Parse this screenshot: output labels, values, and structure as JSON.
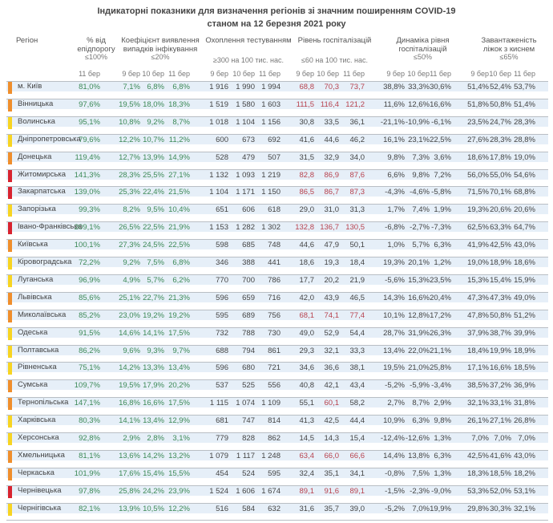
{
  "title_line1": "Індикаторні показники для визначення регіонів зі значним поширенням COVID-19",
  "title_line2": "станом на 12 березня 2021 року",
  "headers": {
    "region": "Регіон",
    "epid": "% від епідпорогу",
    "epid_thr": "≤100%",
    "detect": "Коефіцієнт виявлення випадків інфікування",
    "detect_thr": "≤20%",
    "testing": "Охоплення тестуванням",
    "testing_thr": "≥300 на 100 тис. нас.",
    "hosp": "Рівень госпіталізацій",
    "hosp_thr": "≤60 на 100 тис. нас.",
    "dyn": "Динаміка рівня госпіталізацій",
    "dyn_thr": "≤50%",
    "beds": "Завантаженість ліжок з киснем",
    "beds_thr": "≤65%"
  },
  "dates": [
    "9 бер",
    "10 бер",
    "11 бер"
  ],
  "level_colors": {
    "orange": "#ef8e2c",
    "yellow": "#f7d422",
    "red": "#d8232f"
  },
  "rows": [
    {
      "name": "м. Київ",
      "level": "orange",
      "v": [
        "81,0%",
        "7,1%",
        "6,8%",
        "6,8%",
        "1 916",
        "1 990",
        "1 994",
        "68,8",
        "70,3",
        "73,7",
        "38,8%",
        "33,3%",
        "30,6%",
        "51,4%",
        "52,4%",
        "53,7%"
      ]
    },
    {
      "name": "Вінницька",
      "level": "orange",
      "v": [
        "97,6%",
        "19,5%",
        "18,0%",
        "18,3%",
        "1 519",
        "1 580",
        "1 603",
        "111,5",
        "116,4",
        "121,2",
        "11,6%",
        "12,6%",
        "16,6%",
        "51,8%",
        "50,8%",
        "51,4%"
      ]
    },
    {
      "name": "Волинська",
      "level": "yellow",
      "v": [
        "95,1%",
        "10,8%",
        "9,2%",
        "8,7%",
        "1 018",
        "1 104",
        "1 156",
        "30,8",
        "33,5",
        "36,1",
        "-21,1%",
        "-10,9%",
        "-6,1%",
        "23,5%",
        "24,7%",
        "28,3%"
      ]
    },
    {
      "name": "Дніпропетровська",
      "level": "yellow",
      "v": [
        "79,6%",
        "12,2%",
        "10,7%",
        "11,2%",
        "600",
        "673",
        "692",
        "41,6",
        "44,6",
        "46,2",
        "16,1%",
        "23,1%",
        "22,5%",
        "27,6%",
        "28,3%",
        "28,8%"
      ]
    },
    {
      "name": "Донецька",
      "level": "orange",
      "v": [
        "119,4%",
        "12,7%",
        "13,9%",
        "14,9%",
        "528",
        "479",
        "507",
        "31,5",
        "32,9",
        "34,0",
        "9,8%",
        "7,3%",
        "3,6%",
        "18,6%",
        "17,8%",
        "19,0%"
      ]
    },
    {
      "name": "Житомирська",
      "level": "red",
      "v": [
        "141,3%",
        "28,3%",
        "25,5%",
        "27,1%",
        "1 132",
        "1 093",
        "1 219",
        "82,8",
        "86,9",
        "87,6",
        "6,6%",
        "9,8%",
        "7,2%",
        "56,0%",
        "55,0%",
        "54,6%"
      ]
    },
    {
      "name": "Закарпатська",
      "level": "red",
      "v": [
        "139,0%",
        "25,3%",
        "22,4%",
        "21,5%",
        "1 104",
        "1 171",
        "1 150",
        "86,5",
        "86,7",
        "87,3",
        "-4,3%",
        "-4,6%",
        "-5,8%",
        "71,5%",
        "70,1%",
        "68,8%"
      ]
    },
    {
      "name": "Запорізька",
      "level": "yellow",
      "v": [
        "99,3%",
        "8,2%",
        "9,5%",
        "10,4%",
        "651",
        "606",
        "618",
        "29,0",
        "31,0",
        "31,3",
        "1,7%",
        "7,4%",
        "1,9%",
        "19,3%",
        "20,6%",
        "20,6%"
      ]
    },
    {
      "name": "Івано-Франківська",
      "level": "red",
      "v": [
        "209,1%",
        "26,5%",
        "22,5%",
        "21,9%",
        "1 153",
        "1 282",
        "1 302",
        "132,8",
        "136,7",
        "130,5",
        "-6,8%",
        "-2,7%",
        "-7,3%",
        "62,5%",
        "63,3%",
        "64,7%"
      ]
    },
    {
      "name": "Київська",
      "level": "orange",
      "v": [
        "100,1%",
        "27,3%",
        "24,5%",
        "22,5%",
        "598",
        "685",
        "748",
        "44,6",
        "47,9",
        "50,1",
        "1,0%",
        "5,7%",
        "6,3%",
        "41,9%",
        "42,5%",
        "43,0%"
      ]
    },
    {
      "name": "Кіровоградська",
      "level": "yellow",
      "v": [
        "72,2%",
        "9,2%",
        "7,5%",
        "6,8%",
        "346",
        "388",
        "441",
        "18,6",
        "19,3",
        "18,4",
        "19,3%",
        "20,1%",
        "1,2%",
        "19,0%",
        "18,9%",
        "18,6%"
      ]
    },
    {
      "name": "Луганська",
      "level": "yellow",
      "v": [
        "96,9%",
        "4,9%",
        "5,7%",
        "6,2%",
        "770",
        "700",
        "786",
        "17,7",
        "20,2",
        "21,9",
        "-5,6%",
        "15,3%",
        "23,5%",
        "15,3%",
        "15,4%",
        "15,9%"
      ]
    },
    {
      "name": "Львівська",
      "level": "orange",
      "v": [
        "85,6%",
        "25,1%",
        "22,7%",
        "21,3%",
        "596",
        "659",
        "716",
        "42,0",
        "43,9",
        "46,5",
        "14,3%",
        "16,6%",
        "20,4%",
        "47,3%",
        "47,3%",
        "49,0%"
      ]
    },
    {
      "name": "Миколаївська",
      "level": "orange",
      "v": [
        "85,2%",
        "23,0%",
        "19,2%",
        "19,2%",
        "595",
        "689",
        "756",
        "68,1",
        "74,1",
        "77,4",
        "10,1%",
        "12,8%",
        "17,2%",
        "47,8%",
        "50,8%",
        "51,2%"
      ]
    },
    {
      "name": "Одеська",
      "level": "yellow",
      "v": [
        "91,5%",
        "14,6%",
        "14,1%",
        "17,5%",
        "732",
        "788",
        "730",
        "49,0",
        "52,9",
        "54,4",
        "28,7%",
        "31,9%",
        "26,3%",
        "37,9%",
        "38,7%",
        "39,9%"
      ]
    },
    {
      "name": "Полтавська",
      "level": "yellow",
      "v": [
        "86,2%",
        "9,6%",
        "9,3%",
        "9,7%",
        "688",
        "794",
        "861",
        "29,3",
        "32,1",
        "33,3",
        "13,4%",
        "22,0%",
        "21,1%",
        "18,4%",
        "19,9%",
        "18,9%"
      ]
    },
    {
      "name": "Рівненська",
      "level": "yellow",
      "v": [
        "75,1%",
        "14,2%",
        "13,3%",
        "13,4%",
        "596",
        "680",
        "721",
        "34,6",
        "36,6",
        "38,1",
        "19,5%",
        "21,0%",
        "25,8%",
        "17,1%",
        "16,6%",
        "18,5%"
      ]
    },
    {
      "name": "Сумська",
      "level": "orange",
      "v": [
        "109,7%",
        "19,5%",
        "17,9%",
        "20,2%",
        "537",
        "525",
        "556",
        "40,8",
        "42,1",
        "43,4",
        "-5,2%",
        "-5,9%",
        "-3,4%",
        "38,5%",
        "37,2%",
        "36,9%"
      ]
    },
    {
      "name": "Тернопільська",
      "level": "orange",
      "v": [
        "147,1%",
        "16,8%",
        "16,6%",
        "17,5%",
        "1 115",
        "1 074",
        "1 109",
        "55,1",
        "60,1",
        "58,2",
        "2,7%",
        "8,7%",
        "2,9%",
        "32,1%",
        "33,1%",
        "31,8%"
      ]
    },
    {
      "name": "Харківська",
      "level": "yellow",
      "v": [
        "80,3%",
        "14,1%",
        "13,4%",
        "12,9%",
        "681",
        "747",
        "814",
        "41,3",
        "42,5",
        "44,4",
        "10,9%",
        "6,3%",
        "9,8%",
        "26,1%",
        "27,1%",
        "26,8%"
      ]
    },
    {
      "name": "Херсонська",
      "level": "yellow",
      "v": [
        "92,8%",
        "2,9%",
        "2,8%",
        "3,1%",
        "779",
        "828",
        "862",
        "14,5",
        "14,3",
        "15,4",
        "-12,4%",
        "-12,6%",
        "1,3%",
        "7,0%",
        "7,0%",
        "7,0%"
      ]
    },
    {
      "name": "Хмельницька",
      "level": "orange",
      "v": [
        "81,1%",
        "13,6%",
        "14,2%",
        "13,2%",
        "1 079",
        "1 117",
        "1 248",
        "63,4",
        "66,0",
        "66,6",
        "14,4%",
        "13,8%",
        "6,3%",
        "42,5%",
        "41,6%",
        "43,0%"
      ]
    },
    {
      "name": "Черкаська",
      "level": "orange",
      "v": [
        "101,9%",
        "17,6%",
        "15,4%",
        "15,5%",
        "454",
        "524",
        "595",
        "32,4",
        "35,1",
        "34,1",
        "-0,8%",
        "7,5%",
        "1,3%",
        "18,3%",
        "18,5%",
        "18,2%"
      ]
    },
    {
      "name": "Чернівецька",
      "level": "red",
      "v": [
        "97,8%",
        "25,8%",
        "24,2%",
        "23,9%",
        "1 524",
        "1 606",
        "1 674",
        "89,1",
        "91,6",
        "89,1",
        "-1,5%",
        "-2,3%",
        "-9,0%",
        "53,3%",
        "52,0%",
        "53,1%"
      ]
    },
    {
      "name": "Чернігівська",
      "level": "yellow",
      "v": [
        "82,1%",
        "13,9%",
        "10,5%",
        "12,2%",
        "516",
        "584",
        "632",
        "31,6",
        "35,7",
        "39,0",
        "-5,2%",
        "7,0%",
        "19,9%",
        "29,8%",
        "30,3%",
        "32,1%"
      ]
    }
  ]
}
